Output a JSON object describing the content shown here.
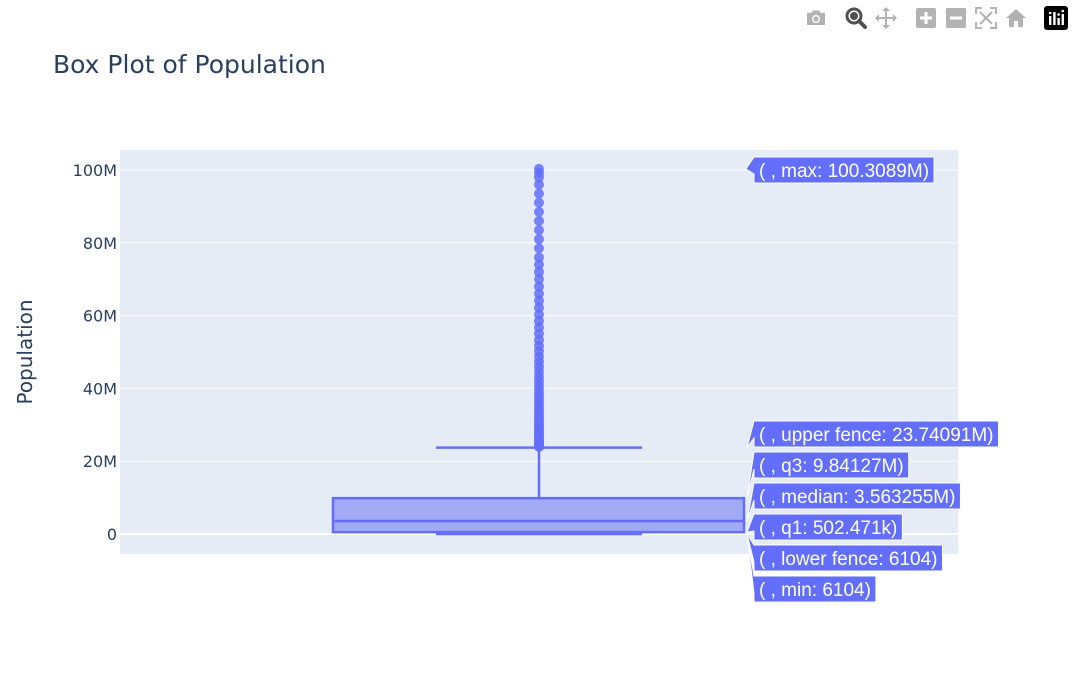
{
  "modebar": {
    "buttons": [
      {
        "name": "camera-icon",
        "icon": "camera"
      },
      {
        "name": "zoom-icon",
        "icon": "zoom",
        "active": true
      },
      {
        "name": "pan-icon",
        "icon": "pan"
      },
      {
        "name": "zoom-in-icon",
        "icon": "plus"
      },
      {
        "name": "zoom-out-icon",
        "icon": "minus"
      },
      {
        "name": "autoscale-icon",
        "icon": "autoscale"
      },
      {
        "name": "reset-axes-icon",
        "icon": "home"
      }
    ],
    "logo": "plotly-logo-icon"
  },
  "colors": {
    "plot_bg": "#e5ecf6",
    "grid": "#ffffff",
    "box_line": "#636efa",
    "box_fill": "#a3aaf5",
    "hover_bg": "#636efa",
    "text": "#2a3f5f",
    "icon": "#b3b3b3",
    "icon_active": "#505050"
  },
  "chart_data": {
    "type": "box",
    "title": "Box Plot of Population",
    "ylabel": "Population",
    "ylim": [
      -5.5,
      105.5
    ],
    "yticks": [
      {
        "value": 0,
        "label": "0"
      },
      {
        "value": 20,
        "label": "20M"
      },
      {
        "value": 40,
        "label": "40M"
      },
      {
        "value": 60,
        "label": "60M"
      },
      {
        "value": 80,
        "label": "80M"
      },
      {
        "value": 100,
        "label": "100M"
      }
    ],
    "unit": "millions",
    "stats": {
      "min": 0.006104,
      "lower_fence": 0.006104,
      "q1": 0.502471,
      "median": 3.563255,
      "q3": 9.84127,
      "upper_fence": 23.74091,
      "max": 100.3089
    },
    "outliers": [
      23.9,
      24.2,
      24.6,
      25.0,
      25.4,
      25.9,
      26.3,
      26.8,
      27.3,
      27.9,
      28.4,
      29.0,
      29.6,
      30.3,
      31.0,
      31.7,
      32.4,
      33.2,
      34.0,
      34.9,
      35.8,
      36.7,
      37.7,
      38.7,
      39.8,
      40.9,
      42.1,
      43.3,
      44.6,
      45.9,
      47.3,
      48.7,
      50.2,
      51.7,
      53.3,
      55.0,
      56.7,
      58.5,
      60.3,
      62.2,
      64.1,
      66.0,
      68.0,
      70.0,
      72.0,
      74.0,
      76.0,
      78.5,
      81.0,
      83.5,
      86.0,
      88.5,
      91.0,
      93.5,
      96.0,
      98.0,
      99.2,
      100.3089
    ],
    "hover_labels": [
      {
        "key": "max",
        "text": "( , max: 100.3089M)"
      },
      {
        "key": "upper_fence",
        "text": "( , upper fence: 23.74091M)"
      },
      {
        "key": "q3",
        "text": "( , q3: 9.84127M)"
      },
      {
        "key": "median",
        "text": "( , median: 3.563255M)"
      },
      {
        "key": "q1",
        "text": "( , q1: 502.471k)"
      },
      {
        "key": "lower_fence",
        "text": "( , lower fence: 6104)"
      },
      {
        "key": "min",
        "text": "( , min: 6104)"
      }
    ],
    "grid": true,
    "legend": "none"
  }
}
